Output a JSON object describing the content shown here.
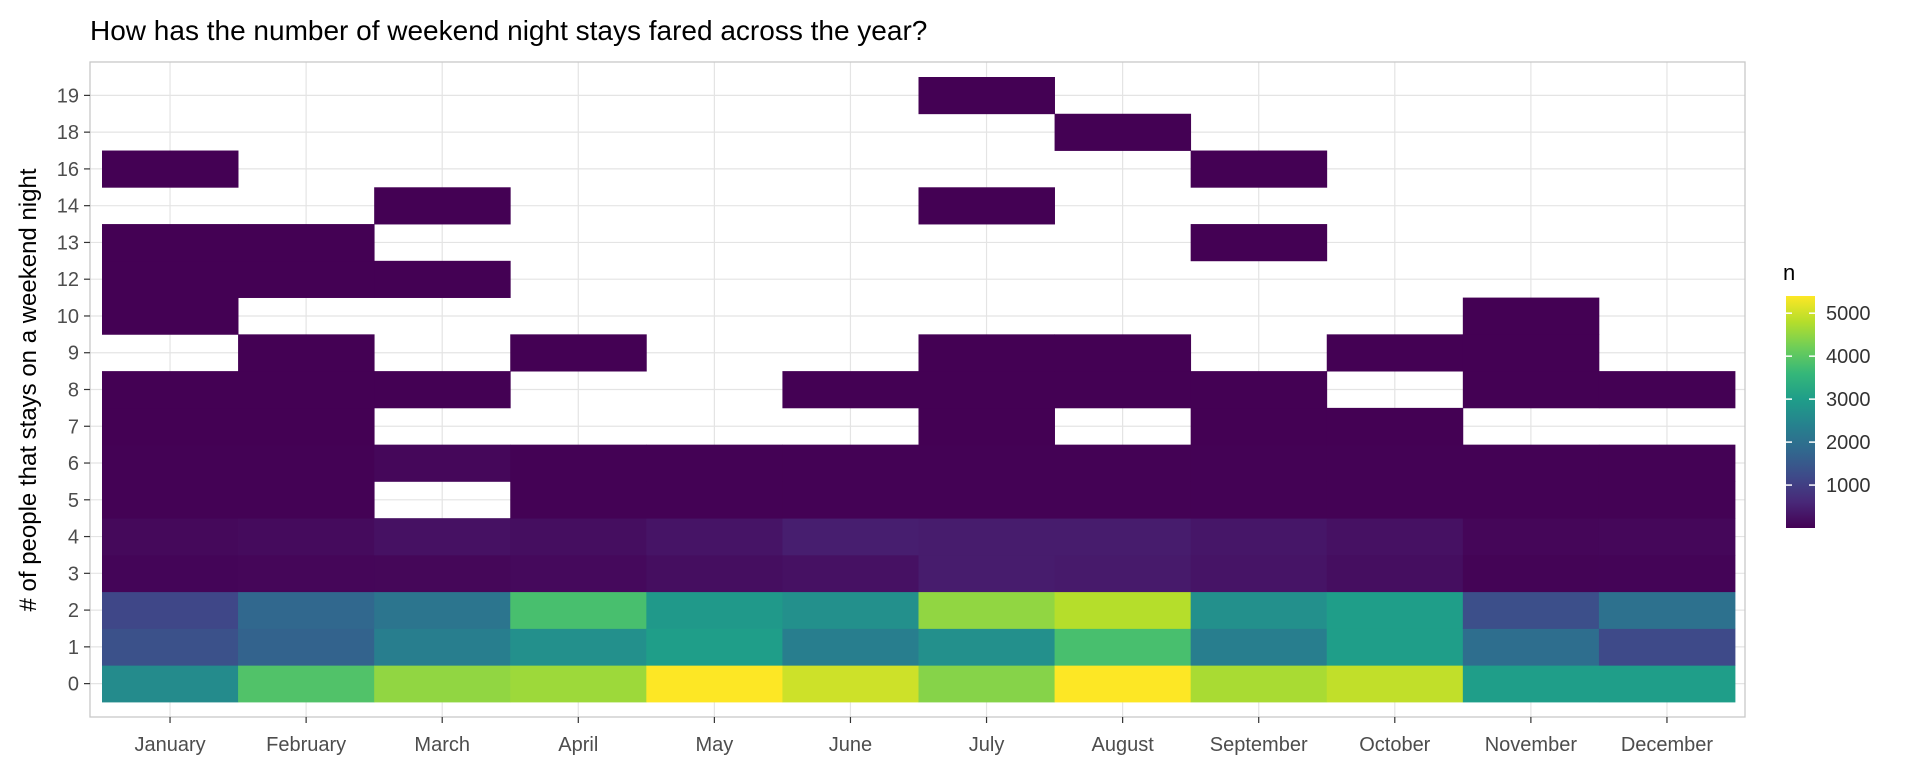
{
  "chart_data": {
    "type": "heatmap",
    "title": "How has the number of weekend night stays fared across the year?",
    "xlabel": "",
    "ylabel": "# of people that stays on a weekend night",
    "x_categories": [
      "January",
      "February",
      "March",
      "April",
      "May",
      "June",
      "July",
      "August",
      "September",
      "October",
      "November",
      "December"
    ],
    "y_categories": [
      "0",
      "1",
      "2",
      "3",
      "4",
      "5",
      "6",
      "7",
      "8",
      "9",
      "10",
      "12",
      "13",
      "14",
      "16",
      "18",
      "19"
    ],
    "legend": {
      "title": "n",
      "ticks": [
        1000,
        2000,
        3000,
        4000,
        5000
      ],
      "tick_labels": [
        "1000",
        "2000",
        "3000",
        "4000",
        "5000"
      ],
      "range": [
        1,
        5400
      ],
      "position": "right",
      "palette": [
        "#440154",
        "#482878",
        "#3e4a89",
        "#31688e",
        "#26828e",
        "#1f9e89",
        "#35b779",
        "#6ece58",
        "#b5de2b",
        "#fde725"
      ]
    },
    "grid": true,
    "cells": {
      "January": {
        "0": 2600,
        "1": 1350,
        "2": 1150,
        "3": 60,
        "4": 120,
        "5": 10,
        "6": 10,
        "7": 5,
        "8": 5,
        "10": 2,
        "12": 2,
        "13": 2,
        "16": 1
      },
      "February": {
        "0": 3900,
        "1": 1700,
        "2": 1800,
        "3": 80,
        "4": 150,
        "5": 20,
        "6": 15,
        "7": 8,
        "8": 5,
        "9": 2,
        "12": 1,
        "13": 1
      },
      "March": {
        "0": 4500,
        "1": 2300,
        "2": 2100,
        "3": 90,
        "4": 250,
        "6": 100,
        "8": 3,
        "12": 1,
        "14": 1
      },
      "April": {
        "0": 4600,
        "1": 2700,
        "2": 3800,
        "3": 130,
        "4": 200,
        "5": 20,
        "6": 10,
        "9": 2
      },
      "May": {
        "0": 5400,
        "1": 3000,
        "2": 2900,
        "3": 200,
        "4": 300,
        "5": 15,
        "6": 10
      },
      "June": {
        "0": 5000,
        "1": 2300,
        "2": 2700,
        "3": 250,
        "4": 450,
        "5": 20,
        "6": 10,
        "8": 3
      },
      "July": {
        "0": 4400,
        "1": 2700,
        "2": 4500,
        "3": 420,
        "4": 420,
        "5": 20,
        "6": 10,
        "7": 3,
        "8": 3,
        "9": 2,
        "14": 1,
        "19": 1
      },
      "August": {
        "0": 5400,
        "1": 3800,
        "2": 4800,
        "3": 390,
        "4": 420,
        "5": 20,
        "6": 10,
        "8": 3,
        "9": 2,
        "18": 1
      },
      "September": {
        "0": 4700,
        "1": 2300,
        "2": 2700,
        "3": 300,
        "4": 330,
        "5": 20,
        "6": 10,
        "7": 3,
        "8": 3,
        "13": 1,
        "16": 1
      },
      "October": {
        "0": 4900,
        "1": 3000,
        "2": 3000,
        "3": 200,
        "4": 250,
        "5": 20,
        "6": 10,
        "7": 3,
        "9": 2
      },
      "November": {
        "0": 3000,
        "1": 1950,
        "2": 1300,
        "3": 40,
        "4": 80,
        "5": 10,
        "6": 10,
        "8": 3,
        "9": 2,
        "10": 1
      },
      "December": {
        "0": 3000,
        "1": 1200,
        "2": 2000,
        "3": 50,
        "4": 100,
        "5": 15,
        "6": 10,
        "8": 3
      }
    }
  }
}
